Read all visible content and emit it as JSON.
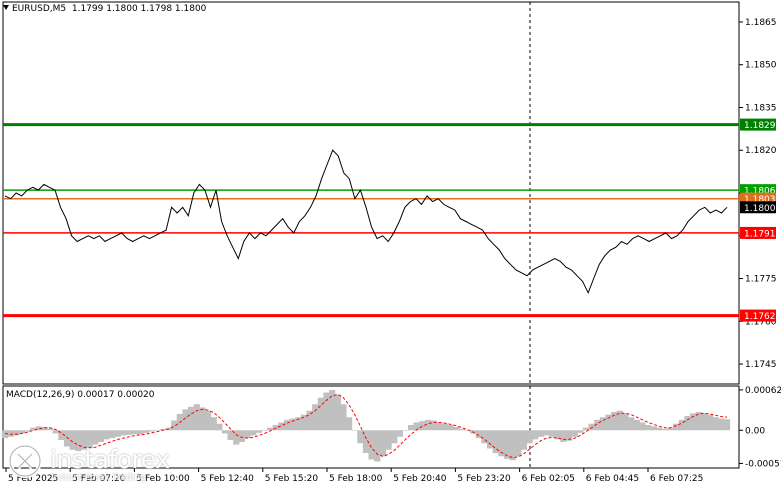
{
  "header": {
    "symbol": "EURUSD,M5",
    "ohlc": "1.1799 1.1800 1.1798 1.1800"
  },
  "price_axis": {
    "ticks": [
      "1.1865",
      "1.1850",
      "1.1835",
      "1.1820",
      "1.1805",
      "1.1790",
      "1.1775",
      "1.1760",
      "1.1745"
    ]
  },
  "levels": [
    {
      "name": "resistance-2",
      "label": "1.1829",
      "value": 1.1829,
      "color": "#008000"
    },
    {
      "name": "resistance-1",
      "label": "1.1806",
      "value": 1.1806,
      "color": "#00a000"
    },
    {
      "name": "current-ask",
      "label": "1.1803",
      "value": 1.1803,
      "color": "#e07020"
    },
    {
      "name": "current-price",
      "label": "1.1800",
      "value": 1.18,
      "color": "#000000"
    },
    {
      "name": "support-1",
      "label": "1.1791",
      "value": 1.1791,
      "color": "#ff0000"
    },
    {
      "name": "support-2",
      "label": "1.1762",
      "value": 1.1762,
      "color": "#ff0000"
    }
  ],
  "time_axis": {
    "labels": [
      "5 Feb 2025",
      "5 Feb 07:20",
      "5 Feb 10:00",
      "5 Feb 12:40",
      "5 Feb 15:20",
      "5 Feb 18:00",
      "5 Feb 20:40",
      "5 Feb 23:20",
      "6 Feb 02:05",
      "6 Feb 04:45",
      "6 Feb 07:25"
    ]
  },
  "macd": {
    "title": "MACD(12,26,9) 0.00017 0.00020",
    "ticks": [
      "0.00062",
      "0.00",
      "-0.00051"
    ],
    "hist_color": "#c0c0c0",
    "signal_color": "#ff0000"
  },
  "logo": {
    "brand": "instaforex",
    "tagline": "Instant Forex Trading"
  },
  "chart_data": {
    "type": "line",
    "title": "EURUSD,M5",
    "y_range": [
      1.1738,
      1.1872
    ],
    "price_series": [
      1.1804,
      1.1803,
      1.1805,
      1.1804,
      1.1806,
      1.1807,
      1.1806,
      1.1808,
      1.1807,
      1.1806,
      1.18,
      1.1796,
      1.179,
      1.1788,
      1.1789,
      1.179,
      1.1789,
      1.179,
      1.1788,
      1.1789,
      1.179,
      1.1791,
      1.1789,
      1.1788,
      1.1789,
      1.179,
      1.1789,
      1.179,
      1.1791,
      1.1792,
      1.18,
      1.1798,
      1.18,
      1.1797,
      1.1805,
      1.1808,
      1.1806,
      1.18,
      1.1806,
      1.1795,
      1.179,
      1.1786,
      1.1782,
      1.1788,
      1.1791,
      1.1789,
      1.1791,
      1.179,
      1.1792,
      1.1794,
      1.1796,
      1.1793,
      1.1791,
      1.1795,
      1.1797,
      1.18,
      1.1804,
      1.181,
      1.1815,
      1.182,
      1.1818,
      1.1812,
      1.181,
      1.1803,
      1.1806,
      1.18,
      1.1793,
      1.1789,
      1.179,
      1.1788,
      1.1791,
      1.1795,
      1.18,
      1.1802,
      1.1803,
      1.1801,
      1.1804,
      1.1802,
      1.1803,
      1.1801,
      1.18,
      1.1799,
      1.1796,
      1.1795,
      1.1794,
      1.1793,
      1.1792,
      1.1789,
      1.1787,
      1.1785,
      1.1782,
      1.178,
      1.1778,
      1.1777,
      1.1776,
      1.1778,
      1.1779,
      1.178,
      1.1781,
      1.1782,
      1.1781,
      1.1779,
      1.1778,
      1.1776,
      1.1774,
      1.177,
      1.1775,
      1.178,
      1.1783,
      1.1785,
      1.1786,
      1.1788,
      1.1787,
      1.1789,
      1.179,
      1.1789,
      1.1788,
      1.1789,
      1.179,
      1.1791,
      1.1789,
      1.179,
      1.1792,
      1.1795,
      1.1797,
      1.1799,
      1.18,
      1.1798,
      1.1799,
      1.1798,
      1.18
    ],
    "macd_series": {
      "histogram": [
        -0.00012,
        -0.0001,
        -8e-05,
        -5e-05,
        -2e-05,
        4e-05,
        6e-05,
        5e-05,
        3e-05,
        -5e-05,
        -0.00015,
        -0.00025,
        -0.0003,
        -0.00032,
        -0.0003,
        -0.00027,
        -0.00022,
        -0.00018,
        -0.00014,
        -0.00012,
        -0.0001,
        -8e-05,
        -7e-05,
        -6e-05,
        -6e-05,
        -4e-05,
        -2e-05,
        0.0,
        2e-05,
        4e-05,
        0.00015,
        0.00025,
        0.00032,
        0.00036,
        0.0004,
        0.00035,
        0.0003,
        0.0002,
        0.0001,
        -5e-05,
        -0.00015,
        -0.00022,
        -0.00018,
        -0.00012,
        -8e-05,
        -4e-05,
        0.0,
        4e-05,
        8e-05,
        0.00012,
        0.00016,
        0.00018,
        0.0002,
        0.00024,
        0.0003,
        0.0004,
        0.0005,
        0.00058,
        0.00062,
        0.00055,
        0.0004,
        0.0002,
        0.0,
        -0.0002,
        -0.00035,
        -0.00045,
        -0.00048,
        -0.0004,
        -0.0003,
        -0.0002,
        -0.0001,
        0.0,
        8e-05,
        0.00012,
        0.00014,
        0.00016,
        0.00015,
        0.00012,
        0.0001,
        8e-05,
        5e-05,
        2e-05,
        0.0,
        -5e-05,
        -0.00012,
        -0.0002,
        -0.00028,
        -0.00035,
        -0.0004,
        -0.00044,
        -0.00046,
        -0.0004,
        -0.0003,
        -0.0002,
        -0.00014,
        -0.0001,
        -8e-05,
        -0.0001,
        -0.00014,
        -0.00018,
        -0.00016,
        -0.0001,
        -4e-05,
        4e-05,
        0.0001,
        0.00016,
        0.0002,
        0.00024,
        0.00028,
        0.0003,
        0.00026,
        0.0002,
        0.00016,
        0.00012,
        8e-05,
        6e-05,
        4e-05,
        2e-05,
        4e-05,
        0.0001,
        0.00016,
        0.00022,
        0.00026,
        0.00028,
        0.00026,
        0.00024,
        0.0002,
        0.00018,
        0.00017
      ],
      "signal": [
        -5e-05,
        -6e-05,
        -6e-05,
        -5e-05,
        -3e-05,
        0.0,
        2e-05,
        4e-05,
        4e-05,
        1e-05,
        -4e-05,
        -0.00011,
        -0.00018,
        -0.00023,
        -0.00026,
        -0.00027,
        -0.00026,
        -0.00023,
        -0.0002,
        -0.00017,
        -0.00014,
        -0.00012,
        -0.0001,
        -8e-05,
        -7e-05,
        -6e-05,
        -4e-05,
        -2e-05,
        0.0,
        2e-05,
        6e-05,
        0.00012,
        0.00019,
        0.00025,
        0.0003,
        0.00032,
        0.00031,
        0.00027,
        0.0002,
        0.00011,
        2e-05,
        -7e-05,
        -0.00011,
        -0.00012,
        -0.00011,
        -8e-05,
        -5e-05,
        -1e-05,
        3e-05,
        7e-05,
        0.00011,
        0.00014,
        0.00017,
        0.0002,
        0.00024,
        0.0003,
        0.00038,
        0.00046,
        0.00053,
        0.00055,
        0.0005,
        0.00039,
        0.00024,
        6e-05,
        -0.00012,
        -0.00027,
        -0.00037,
        -0.0004,
        -0.00037,
        -0.00031,
        -0.00023,
        -0.00014,
        -6e-05,
        1e-05,
        6e-05,
        0.0001,
        0.00012,
        0.00012,
        0.00011,
        9e-05,
        7e-05,
        4e-05,
        1e-05,
        -3e-05,
        -8e-05,
        -0.00014,
        -0.00021,
        -0.00028,
        -0.00034,
        -0.00039,
        -0.00042,
        -0.00041,
        -0.00036,
        -0.00029,
        -0.00022,
        -0.00016,
        -0.00012,
        -0.00011,
        -0.00012,
        -0.00014,
        -0.00014,
        -0.00012,
        -8e-05,
        -2e-05,
        4e-05,
        0.0001,
        0.00015,
        0.00019,
        0.00023,
        0.00026,
        0.00026,
        0.00024,
        0.0002,
        0.00016,
        0.00012,
        9e-05,
        6e-05,
        4e-05,
        4e-05,
        7e-05,
        0.00011,
        0.00016,
        0.00021,
        0.00025,
        0.00026,
        0.00025,
        0.00023,
        0.00021,
        0.0002
      ],
      "y_range": [
        -0.00058,
        0.00068
      ]
    }
  }
}
